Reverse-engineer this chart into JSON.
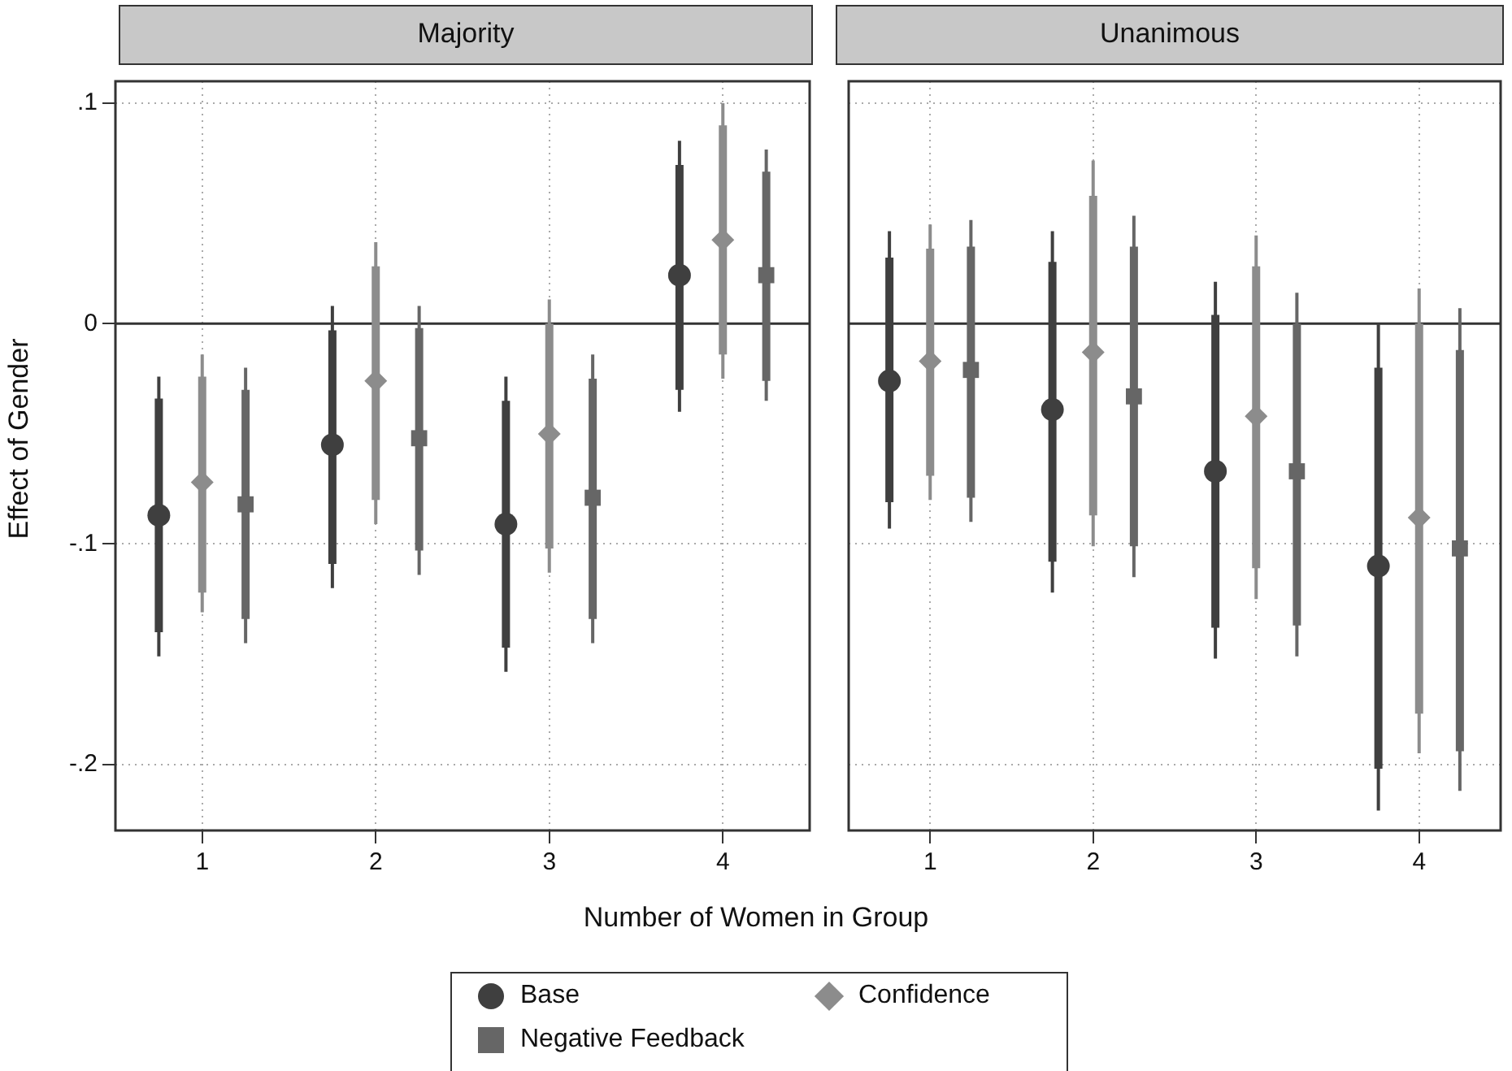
{
  "chart_data": [
    {
      "type": "box",
      "title": "Majority",
      "xlabel": "Number of Women in Group",
      "ylabel": "Effect of Gender",
      "categories": [
        "1",
        "2",
        "3",
        "4"
      ],
      "ylim": [
        -0.23,
        0.11
      ],
      "yticks": [
        {
          "value": 0.1,
          "label": ".1"
        },
        0,
        {
          "value": -0.1,
          "label": "-.1"
        },
        {
          "value": -0.2,
          "label": "-.2"
        }
      ],
      "grid": true,
      "legend": "bottom",
      "ref_lines": [
        {
          "axis": "y",
          "value": 0,
          "color": "#333333"
        }
      ],
      "series": [
        {
          "name": "Base",
          "color": "#3f3f3f",
          "marker": "circle",
          "boxes": [
            {
              "low": -0.151,
              "q1": -0.14,
              "median": -0.087,
              "q3": -0.034,
              "high": -0.024
            },
            {
              "low": -0.12,
              "q1": -0.109,
              "median": -0.055,
              "q3": -0.003,
              "high": 0.008
            },
            {
              "low": -0.158,
              "q1": -0.147,
              "median": -0.091,
              "q3": -0.035,
              "high": -0.024
            },
            {
              "low": -0.04,
              "q1": -0.03,
              "median": 0.022,
              "q3": 0.072,
              "high": 0.083
            }
          ]
        },
        {
          "name": "Confidence",
          "color": "#8c8c8c",
          "marker": "diamond",
          "boxes": [
            {
              "low": -0.131,
              "q1": -0.122,
              "median": -0.072,
              "q3": -0.024,
              "high": -0.014
            },
            {
              "low": -0.091,
              "q1": -0.08,
              "median": -0.026,
              "q3": 0.026,
              "high": 0.037
            },
            {
              "low": -0.113,
              "q1": -0.102,
              "median": -0.05,
              "q3": 0.0,
              "high": 0.011
            },
            {
              "low": -0.025,
              "q1": -0.014,
              "median": 0.038,
              "q3": 0.09,
              "high": 0.1
            }
          ]
        },
        {
          "name": "Negative Feedback",
          "color": "#666666",
          "marker": "square",
          "boxes": [
            {
              "low": -0.145,
              "q1": -0.134,
              "median": -0.082,
              "q3": -0.03,
              "high": -0.02
            },
            {
              "low": -0.114,
              "q1": -0.103,
              "median": -0.052,
              "q3": -0.002,
              "high": 0.008
            },
            {
              "low": -0.145,
              "q1": -0.134,
              "median": -0.079,
              "q3": -0.025,
              "high": -0.014
            },
            {
              "low": -0.035,
              "q1": -0.026,
              "median": 0.022,
              "q3": 0.069,
              "high": 0.079
            }
          ]
        }
      ]
    },
    {
      "type": "box",
      "title": "Unanimous",
      "categories": [
        "1",
        "2",
        "3",
        "4"
      ],
      "ylim": [
        -0.23,
        0.11
      ],
      "yticks": [
        0.1,
        0,
        -0.1,
        -0.2
      ],
      "grid": true,
      "tick_labels": "x",
      "ref_lines": [
        {
          "axis": "y",
          "value": 0,
          "color": "#333333"
        }
      ],
      "series": [
        {
          "color": "#3f3f3f",
          "marker": "circle",
          "boxes": [
            {
              "low": -0.093,
              "q1": -0.081,
              "median": -0.026,
              "q3": 0.03,
              "high": 0.042
            },
            {
              "low": -0.122,
              "q1": -0.108,
              "median": -0.039,
              "q3": 0.028,
              "high": 0.042
            },
            {
              "low": -0.152,
              "q1": -0.138,
              "median": -0.067,
              "q3": 0.004,
              "high": 0.019
            },
            {
              "low": -0.221,
              "q1": -0.202,
              "median": -0.11,
              "q3": -0.02,
              "high": 0.0
            }
          ]
        },
        {
          "color": "#8c8c8c",
          "marker": "diamond",
          "boxes": [
            {
              "low": -0.08,
              "q1": -0.069,
              "median": -0.017,
              "q3": 0.034,
              "high": 0.045
            },
            {
              "low": -0.101,
              "q1": -0.087,
              "median": -0.013,
              "q3": 0.058,
              "high": 0.074
            },
            {
              "low": -0.125,
              "q1": -0.111,
              "median": -0.042,
              "q3": 0.026,
              "high": 0.04
            },
            {
              "low": -0.195,
              "q1": -0.177,
              "median": -0.088,
              "q3": 0.0,
              "high": 0.016
            }
          ]
        },
        {
          "color": "#666666",
          "marker": "square",
          "boxes": [
            {
              "low": -0.09,
              "q1": -0.079,
              "median": -0.021,
              "q3": 0.035,
              "high": 0.047
            },
            {
              "low": -0.115,
              "q1": -0.101,
              "median": -0.033,
              "q3": 0.035,
              "high": 0.049
            },
            {
              "low": -0.151,
              "q1": -0.137,
              "median": -0.067,
              "q3": 0.0,
              "high": 0.014
            },
            {
              "low": -0.212,
              "q1": -0.194,
              "median": -0.102,
              "q3": -0.012,
              "high": 0.007
            }
          ]
        }
      ]
    }
  ]
}
